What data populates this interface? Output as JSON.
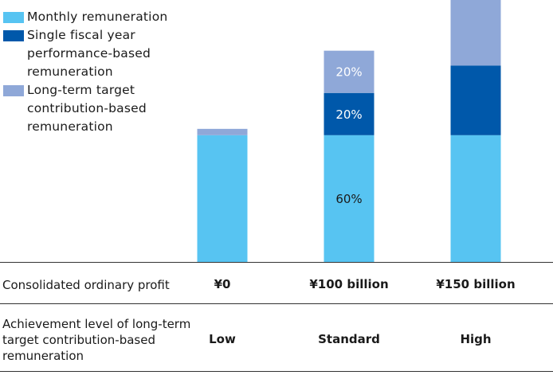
{
  "chart_data": {
    "type": "bar",
    "stacked": true,
    "categories": [
      "¥0",
      "¥100 billion",
      "¥150 billion"
    ],
    "series": [
      {
        "name": "Monthly remuneration",
        "color": "#57c4f2",
        "values": [
          60,
          60,
          60
        ],
        "labels": [
          "",
          "60%",
          ""
        ]
      },
      {
        "name": "Single fiscal year performance-based remuneration",
        "color": "#0058aa",
        "values": [
          0,
          20,
          33
        ],
        "labels": [
          "",
          "20%",
          ""
        ]
      },
      {
        "name": "Long-term target contribution-based remuneration",
        "color": "#8fa8d8",
        "values": [
          3,
          20,
          31
        ],
        "labels": [
          "",
          "20%",
          ""
        ]
      }
    ],
    "ylim": [
      0,
      124
    ],
    "legend_position": "top-left"
  },
  "legend": {
    "items": [
      {
        "label": "Monthly remuneration",
        "color": "#57c4f2"
      },
      {
        "label": "Single fiscal year\nperformance-based\nremuneration",
        "color": "#0058aa"
      },
      {
        "label": "Long-term target\ncontribution-based\nremuneration",
        "color": "#8fa8d8"
      }
    ]
  },
  "table": {
    "profit_label": "Consolidated ordinary profit",
    "profit_values": [
      "¥0",
      "¥100 billion",
      "¥150 billion"
    ],
    "achievement_label": "Achievement level of long-term\ntarget contribution-based\nremuneration",
    "achievement_values": [
      "Low",
      "Standard",
      "High"
    ]
  }
}
